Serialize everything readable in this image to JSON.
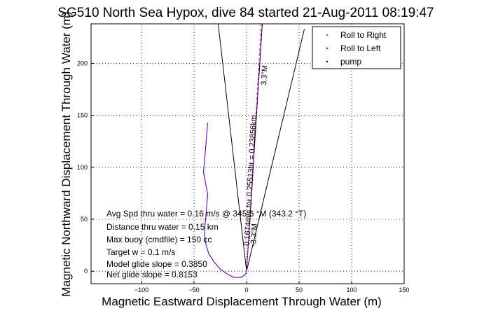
{
  "chart_data": {
    "type": "line",
    "title": "SG510 North Sea Hypox, dive 84 started 21-Aug-2011 08:19:47",
    "xlabel": "Magnetic Eastward Displacement Through Water (m)",
    "ylabel": "Magnetic Northward Displacement Through Water (m)",
    "xlim": [
      -148,
      150
    ],
    "ylim": [
      -12,
      238
    ],
    "xticks": [
      -100,
      -50,
      0,
      50,
      100,
      150
    ],
    "yticks": [
      0,
      50,
      100,
      150,
      200
    ],
    "x_tick_labels": [
      "−100",
      "−50",
      "0",
      "50",
      "100",
      "150"
    ],
    "y_tick_labels": [
      "0",
      "50",
      "100",
      "150",
      "200"
    ],
    "grid": true,
    "legend": {
      "location": "top-right",
      "entries": [
        {
          "label": "Roll to Right",
          "color": "#00cc00",
          "marker": "."
        },
        {
          "label": "Roll to Left",
          "color": "#ff0000",
          "marker": "."
        },
        {
          "label": "pump",
          "color": "#000000",
          "marker": "."
        }
      ]
    },
    "series": [
      {
        "color": "#0000ff",
        "x": [
          -37,
          -38,
          -39,
          -40,
          -41,
          -39,
          -37,
          -38,
          -39,
          -40,
          -39,
          -36,
          -31,
          -25,
          -18,
          -12,
          -6,
          -2,
          0,
          0
        ],
        "y": [
          143,
          130,
          118,
          106,
          95,
          85,
          74,
          62,
          50,
          38,
          27,
          17,
          9,
          2,
          -3,
          -6,
          -6,
          -4,
          -1,
          2
        ]
      },
      {
        "color": "#ff0000",
        "x": [
          -37,
          -38,
          -39,
          -40,
          -41,
          -39,
          -37,
          -38,
          -39,
          -40,
          -39,
          -36,
          -31,
          -25,
          -18,
          -12,
          -6,
          -2,
          0,
          0
        ],
        "y": [
          143,
          130,
          118,
          106,
          95,
          85,
          74,
          62,
          50,
          38,
          27,
          17,
          9,
          2,
          -3,
          -6,
          -6,
          -4,
          -1,
          2
        ]
      },
      {
        "color": "#ff00ff",
        "x": [
          0,
          14
        ],
        "y": [
          0,
          238
        ]
      }
    ],
    "lines": [
      {
        "color": "#000000",
        "x": [
          0,
          -27
        ],
        "y": [
          0,
          238
        ]
      },
      {
        "color": "#000000",
        "x": [
          0,
          55
        ],
        "y": [
          0,
          233
        ]
      },
      {
        "color": "#000000",
        "x": [
          0,
          15
        ],
        "y": [
          0,
          238
        ]
      }
    ],
    "text_annotations": {
      "lines": [
        "Avg Spd thru water = 0.16 m/s @ 345.6 °M (343.2 °T)",
        "Distance thru water = 0.15 km",
        "Max buoy (cmdfile) = 150 cc",
        "Target w = 0.1 m/s",
        "Model glide slope = 0.3850",
        "Net glide slope = 0.8153"
      ],
      "rotated": [
        "0.1674m/s for 0.25513hr = 0.23856km",
        "3.3°M",
        "-3.3°M"
      ]
    }
  }
}
